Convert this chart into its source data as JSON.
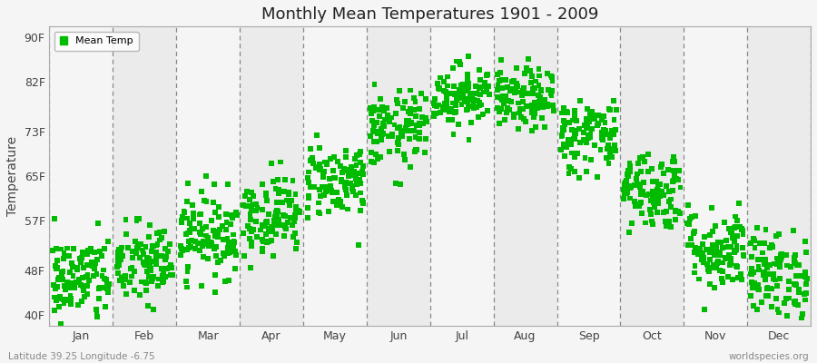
{
  "title": "Monthly Mean Temperatures 1901 - 2009",
  "ylabel": "Temperature",
  "dot_color": "#00bb00",
  "background_color": "#f5f5f5",
  "band_color_light": "#f5f5f5",
  "band_color_dark": "#ebebeb",
  "ytick_labels": [
    "40F",
    "48F",
    "57F",
    "65F",
    "73F",
    "82F",
    "90F"
  ],
  "ytick_values": [
    40,
    48,
    57,
    65,
    73,
    82,
    90
  ],
  "ylim": [
    38,
    92
  ],
  "months": [
    "Jan",
    "Feb",
    "Mar",
    "Apr",
    "May",
    "Jun",
    "Jul",
    "Aug",
    "Sep",
    "Oct",
    "Nov",
    "Dec"
  ],
  "month_mean_temps_F": [
    46.4,
    49.1,
    54.5,
    58.1,
    64.4,
    73.4,
    79.7,
    78.8,
    72.5,
    62.6,
    51.8,
    47.3
  ],
  "month_std_temps_F": [
    4.0,
    3.8,
    3.8,
    3.6,
    3.4,
    3.4,
    2.8,
    2.8,
    3.4,
    3.6,
    3.8,
    4.0
  ],
  "n_years": 109,
  "legend_label": "Mean Temp",
  "footer_left": "Latitude 39.25 Longitude -6.75",
  "footer_right": "worldspecies.org",
  "marker_size": 18,
  "dpi": 100,
  "fig_width": 9.0,
  "fig_height": 4.0
}
